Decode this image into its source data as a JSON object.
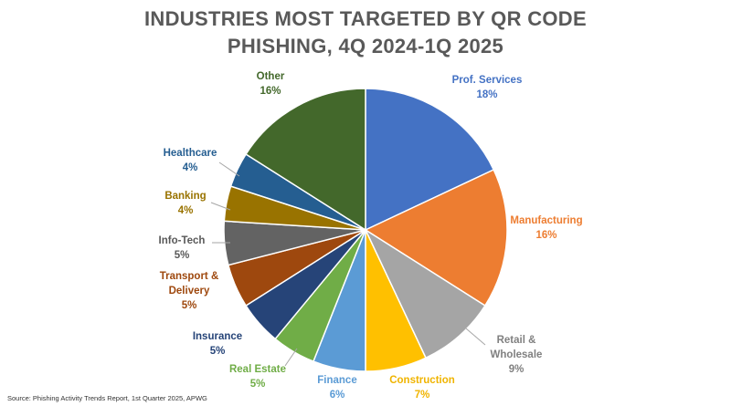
{
  "chart_data": {
    "type": "pie",
    "title_lines": [
      "INDUSTRIES MOST TARGETED BY QR CODE",
      "PHISHING, 4Q 2024-1Q 2025"
    ],
    "slices": [
      {
        "name": "Prof. Services",
        "label_lines": [
          "Prof. Services"
        ],
        "value": 18,
        "value_label": "18%",
        "color": "#4472C4",
        "label_color": "#4472C4"
      },
      {
        "name": "Manufacturing",
        "label_lines": [
          "Manufacturing"
        ],
        "value": 16,
        "value_label": "16%",
        "color": "#ED7D31",
        "label_color": "#ED7D31"
      },
      {
        "name": "Retail & Wholesale",
        "label_lines": [
          "Retail &",
          "Wholesale"
        ],
        "value": 9,
        "value_label": "9%",
        "color": "#A5A5A5",
        "label_color": "#808080"
      },
      {
        "name": "Construction",
        "label_lines": [
          "Construction"
        ],
        "value": 7,
        "value_label": "7%",
        "color": "#FFC000",
        "label_color": "#F0B400"
      },
      {
        "name": "Finance",
        "label_lines": [
          "Finance"
        ],
        "value": 6,
        "value_label": "6%",
        "color": "#5B9BD5",
        "label_color": "#5B9BD5"
      },
      {
        "name": "Real Estate",
        "label_lines": [
          "Real Estate"
        ],
        "value": 5,
        "value_label": "5%",
        "color": "#70AD47",
        "label_color": "#70AD47"
      },
      {
        "name": "Insurance",
        "label_lines": [
          "Insurance"
        ],
        "value": 5,
        "value_label": "5%",
        "color": "#264478",
        "label_color": "#264478"
      },
      {
        "name": "Transport & Delivery",
        "label_lines": [
          "Transport &",
          "Delivery"
        ],
        "value": 5,
        "value_label": "5%",
        "color": "#9E480E",
        "label_color": "#9E480E"
      },
      {
        "name": "Info-Tech",
        "label_lines": [
          "Info-Tech"
        ],
        "value": 5,
        "value_label": "5%",
        "color": "#636363",
        "label_color": "#595959"
      },
      {
        "name": "Banking",
        "label_lines": [
          "Banking"
        ],
        "value": 4,
        "value_label": "4%",
        "color": "#997300",
        "label_color": "#997300"
      },
      {
        "name": "Healthcare",
        "label_lines": [
          "Healthcare"
        ],
        "value": 4,
        "value_label": "4%",
        "color": "#255E91",
        "label_color": "#255E91"
      },
      {
        "name": "Other",
        "label_lines": [
          "Other"
        ],
        "value": 16,
        "value_label": "16%",
        "color": "#43682B",
        "label_color": "#43682B"
      }
    ]
  },
  "source": "Source: Phishing Activity Trends Report, 1st Quarter 2025, APWG"
}
